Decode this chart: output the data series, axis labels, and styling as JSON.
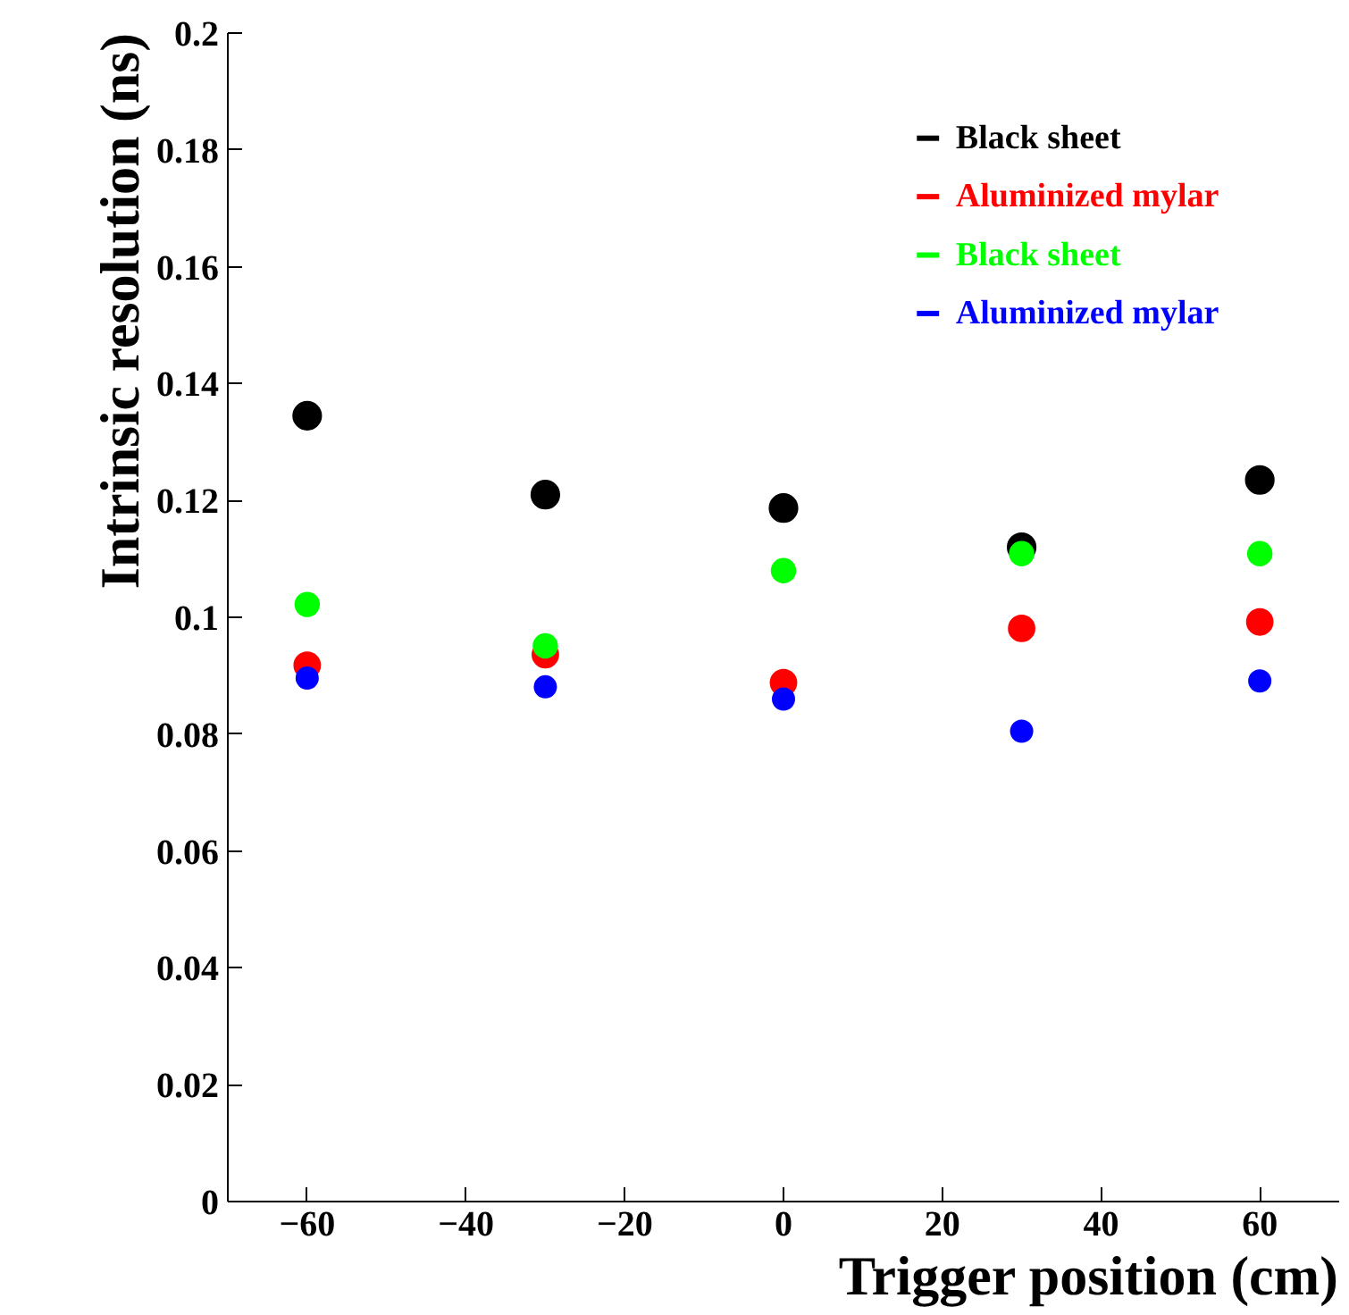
{
  "chart_data": {
    "type": "scatter",
    "xlabel": "Trigger position (cm)",
    "ylabel": "Intrinsic resolution (ns)",
    "x": [
      -60,
      -30,
      0,
      30,
      60
    ],
    "series": [
      {
        "name": "Black sheet",
        "color": "#000000",
        "values": [
          0.1345,
          0.121,
          0.1187,
          0.112,
          0.1235
        ]
      },
      {
        "name": "Aluminized mylar",
        "color": "#ff0000",
        "values": [
          0.0918,
          0.0936,
          0.0888,
          0.0981,
          0.0992
        ]
      },
      {
        "name": "Black sheet",
        "color": "#00ff00",
        "values": [
          0.1022,
          0.0951,
          0.108,
          0.1109,
          0.1109
        ]
      },
      {
        "name": "Aluminized mylar",
        "color": "#0000ff",
        "values": [
          0.0896,
          0.0881,
          0.086,
          0.0805,
          0.0891
        ]
      }
    ],
    "xlim": [
      -70,
      70
    ],
    "ylim": [
      0,
      0.2
    ],
    "xticks": [
      -60,
      -40,
      -20,
      0,
      20,
      40,
      60
    ],
    "yticks": [
      0,
      0.02,
      0.04,
      0.06,
      0.08,
      0.1,
      0.12,
      0.14,
      0.16,
      0.18,
      0.2
    ],
    "marker": "circle",
    "legend": "top right",
    "grid": false
  }
}
